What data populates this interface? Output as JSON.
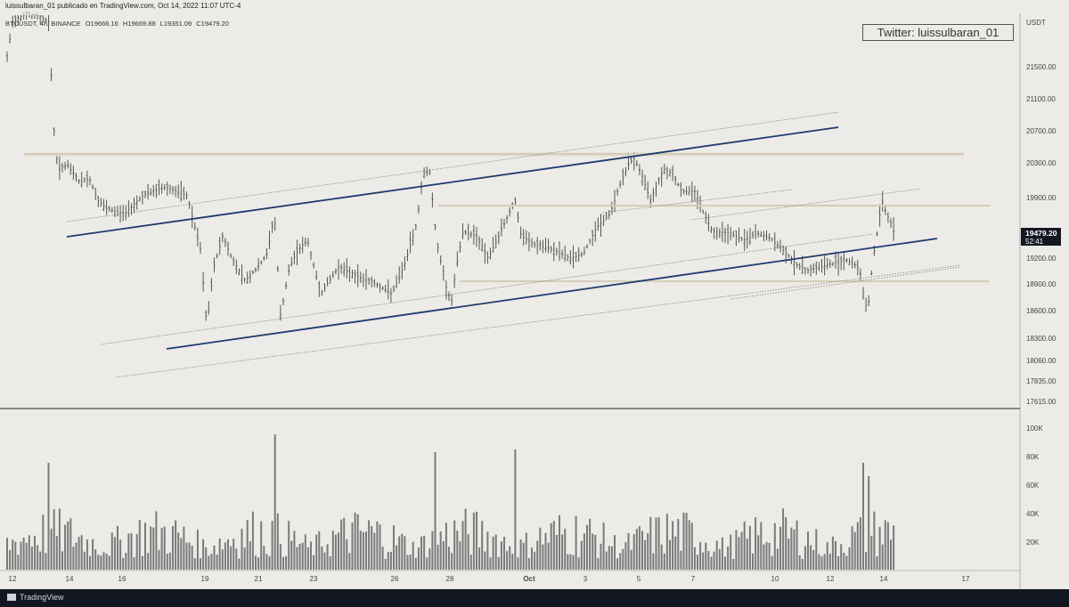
{
  "header": {
    "published": "luissulbaran_01 publicado en TradingView.com, Oct 14, 2022 11:07 UTC-4",
    "symbol": "BTCUSDT, 4h, BINANCE",
    "open": "O19666.16",
    "high": "H19669.88",
    "low": "L19351.09",
    "close": "C19479.20"
  },
  "twitter_label": "Twitter: luissulbaran_01",
  "footer": {
    "brand": "TradingView"
  },
  "chart_data": {
    "type": "candlestick",
    "currency": "USDT",
    "price_axis": {
      "ticks": [
        "21500.00",
        "21100.00",
        "20700.00",
        "20300.00",
        "19900.00",
        "19500.00",
        "19200.00",
        "18900.00",
        "18600.00",
        "18300.00",
        "18060.00",
        "17835.00",
        "17615.00"
      ],
      "last_price": "19479.20",
      "countdown": "52:41"
    },
    "volume_axis": {
      "ticks": [
        "100K",
        "80K",
        "60K",
        "40K",
        "20K"
      ]
    },
    "time_axis": {
      "ticks": [
        "12",
        "14",
        "16",
        "19",
        "21",
        "23",
        "26",
        "28",
        "Oct",
        "3",
        "5",
        "7",
        "10",
        "12",
        "14",
        "17"
      ]
    },
    "colors": {
      "bars": "#555555",
      "trendline": "#1e3a6e",
      "level": "#d5cdb8",
      "label_box": "#131722"
    }
  }
}
